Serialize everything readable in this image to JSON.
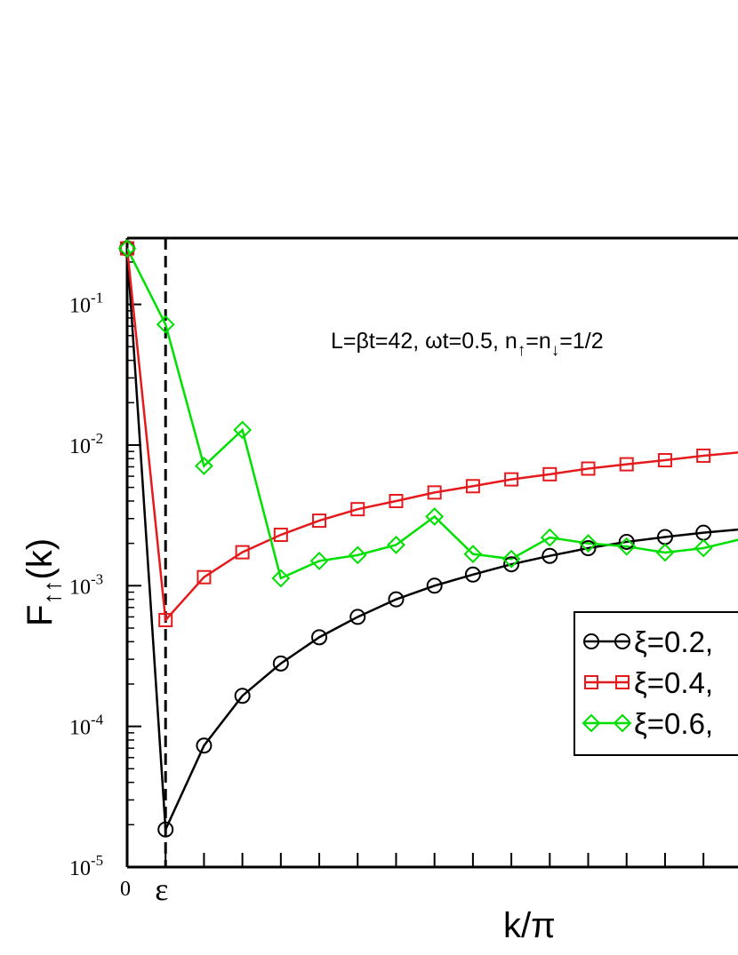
{
  "chart_data": {
    "type": "line",
    "ylabel": "F",
    "ylabel_sub": "↑↑",
    "ylabel_suffix": "(k)",
    "xlabel": "k/π",
    "yscale": "log",
    "ylim": [
      1e-05,
      0.3
    ],
    "xlim": [
      0,
      0.81
    ],
    "yticks": [
      {
        "base": "10",
        "exp": "-5"
      },
      {
        "base": "10",
        "exp": "-4"
      },
      {
        "base": "10",
        "exp": "-3"
      },
      {
        "base": "10",
        "exp": "-2"
      },
      {
        "base": "10",
        "exp": "-1"
      }
    ],
    "xtick_labels": [
      "0",
      "ε"
    ],
    "epsilon_line_x": 0.05,
    "annotation": {
      "part1": "L=βt=42, ωt=0.5, n",
      "sub1": "↑",
      "part2": "=n",
      "sub2": "↓",
      "part3": "=1/2"
    },
    "legend_position": "lower-right",
    "series": [
      {
        "name": "ξ=0.2,",
        "color": "#000000",
        "marker": "circle",
        "x": [
          0,
          0.05,
          0.1,
          0.15,
          0.2,
          0.25,
          0.3,
          0.35,
          0.4,
          0.45,
          0.5,
          0.55,
          0.6,
          0.65,
          0.7,
          0.75,
          0.8
        ],
        "y": [
          0.25,
          1.85e-05,
          7.3e-05,
          0.000165,
          0.00028,
          0.00043,
          0.0006,
          0.0008,
          0.001,
          0.0012,
          0.00142,
          0.00163,
          0.00185,
          0.00205,
          0.00222,
          0.00238,
          0.00252
        ]
      },
      {
        "name": "ξ=0.4,",
        "color": "#e41a1c",
        "marker": "square",
        "x": [
          0,
          0.05,
          0.1,
          0.15,
          0.2,
          0.25,
          0.3,
          0.35,
          0.4,
          0.45,
          0.5,
          0.55,
          0.6,
          0.65,
          0.7,
          0.75,
          0.8
        ],
        "y": [
          0.25,
          0.00057,
          0.00115,
          0.00173,
          0.0023,
          0.0029,
          0.0035,
          0.004,
          0.0046,
          0.0051,
          0.0057,
          0.0062,
          0.0068,
          0.0073,
          0.0078,
          0.0084,
          0.0089
        ]
      },
      {
        "name": "ξ=0.6,",
        "color": "#00e000",
        "marker": "diamond",
        "x": [
          0,
          0.05,
          0.1,
          0.15,
          0.2,
          0.25,
          0.3,
          0.35,
          0.4,
          0.45,
          0.5,
          0.55,
          0.6,
          0.65,
          0.7,
          0.75,
          0.8
        ],
        "y": [
          0.25,
          0.072,
          0.0071,
          0.0128,
          0.00113,
          0.0015,
          0.00165,
          0.00195,
          0.0031,
          0.00168,
          0.00155,
          0.0022,
          0.002,
          0.0019,
          0.00172,
          0.00185,
          0.00215
        ]
      }
    ]
  }
}
